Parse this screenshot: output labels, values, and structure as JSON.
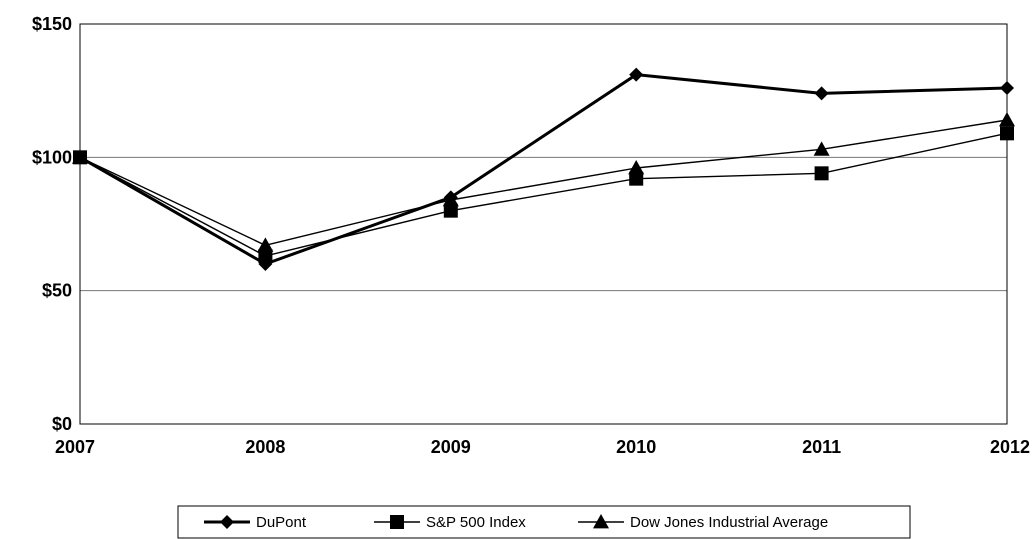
{
  "chart_data": {
    "type": "line",
    "title": "",
    "xlabel": "",
    "ylabel": "",
    "categories": [
      "2007",
      "2008",
      "2009",
      "2010",
      "2011",
      "2012"
    ],
    "y_ticks": [
      "$0",
      "$50",
      "$100",
      "$150"
    ],
    "y_tick_values": [
      0,
      50,
      100,
      150
    ],
    "ylim": [
      0,
      150
    ],
    "grid": "horizontal",
    "legend_placement": "bottom",
    "series": [
      {
        "name": "DuPont",
        "marker": "diamond",
        "values": [
          100,
          60,
          85,
          131,
          124,
          126
        ]
      },
      {
        "name": "S&P 500 Index",
        "marker": "square",
        "values": [
          100,
          63,
          80,
          92,
          94,
          109
        ]
      },
      {
        "name": "Dow Jones Industrial Average",
        "marker": "triangle",
        "values": [
          100,
          67,
          84,
          96,
          103,
          114
        ]
      }
    ]
  }
}
